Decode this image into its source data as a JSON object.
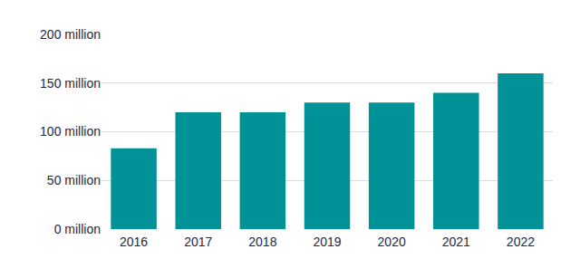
{
  "chart_data": {
    "type": "bar",
    "categories": [
      "2016",
      "2017",
      "2018",
      "2019",
      "2020",
      "2021",
      "2022"
    ],
    "values": [
      83,
      120,
      120,
      130,
      130,
      140,
      160
    ],
    "color": "#009296",
    "ylim": [
      0,
      200
    ],
    "yticks": [
      {
        "value": 0,
        "label": "0 million"
      },
      {
        "value": 50,
        "label": "50 million"
      },
      {
        "value": 100,
        "label": "100 million"
      },
      {
        "value": 150,
        "label": "150 million"
      },
      {
        "value": 200,
        "label": "200 million"
      }
    ],
    "grid": true
  }
}
